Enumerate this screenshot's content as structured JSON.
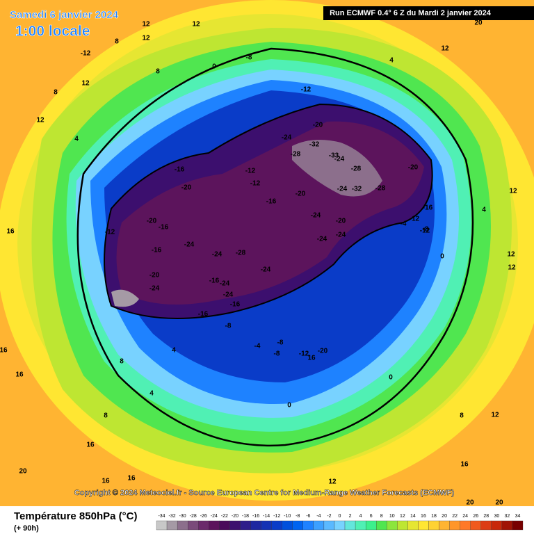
{
  "header": {
    "date": "Samedi 6 janvier 2024",
    "time": "1:00 locale",
    "run": "Run ECMWF 0.4° 6 Z du Mardi 2 janvier 2024"
  },
  "map": {
    "contour_labels": [
      12,
      12,
      -12,
      8,
      12,
      0,
      -8,
      4,
      12,
      20,
      8,
      12,
      8,
      12,
      4,
      -12,
      -20,
      -24,
      -32,
      -28,
      -33,
      -24,
      -28,
      -24,
      -32,
      -28,
      -20,
      -16,
      -20,
      -12,
      -12,
      -16,
      -20,
      -24,
      -20,
      -24,
      -24,
      -12,
      -20,
      -16,
      -16,
      -24,
      -24,
      -28,
      -24,
      -20,
      -24,
      -16,
      -24,
      -24,
      -16,
      -16,
      -8,
      -4,
      -8,
      -8,
      -12,
      16,
      -20,
      0,
      4,
      8,
      4,
      8,
      16,
      20,
      16,
      16,
      12,
      -16,
      -12,
      -8,
      -4,
      -12,
      0,
      12,
      4,
      16,
      16,
      16,
      12,
      12,
      8,
      12,
      0,
      20,
      20,
      16
    ]
  },
  "footer": {
    "copyright": "Copyright © 2024 Meteociel.fr - Source European Centre for Medium-Range Weather Forecasts (ECMWF)",
    "title": "Température 850hPa (°C)",
    "lead": "(+ 90h)"
  },
  "legend": {
    "values": [
      -34,
      -32,
      -30,
      -28,
      -26,
      -24,
      -22,
      -20,
      -18,
      -16,
      -14,
      -12,
      -10,
      -8,
      -6,
      -4,
      -2,
      0,
      2,
      4,
      6,
      8,
      10,
      12,
      14,
      16,
      18,
      20,
      22,
      24,
      26,
      28,
      30,
      32,
      34
    ],
    "colors": [
      "#c8c8c8",
      "#a59aa5",
      "#8c6f8c",
      "#7a4a7a",
      "#6b2a6b",
      "#5c145c",
      "#4a0a5a",
      "#3c0f6e",
      "#2d1e8a",
      "#1e28a0",
      "#1432b4",
      "#0a3cc8",
      "#0050dc",
      "#0064f0",
      "#1e82ff",
      "#3ca0ff",
      "#5ab9ff",
      "#78d2ff",
      "#64e6dc",
      "#50f0b4",
      "#3cf08c",
      "#50e650",
      "#8ce63c",
      "#bee632",
      "#e6e632",
      "#ffe632",
      "#ffd232",
      "#ffb432",
      "#ff9628",
      "#ff7828",
      "#f05a1e",
      "#dc3c14",
      "#c8280a",
      "#a01405",
      "#780000"
    ]
  }
}
